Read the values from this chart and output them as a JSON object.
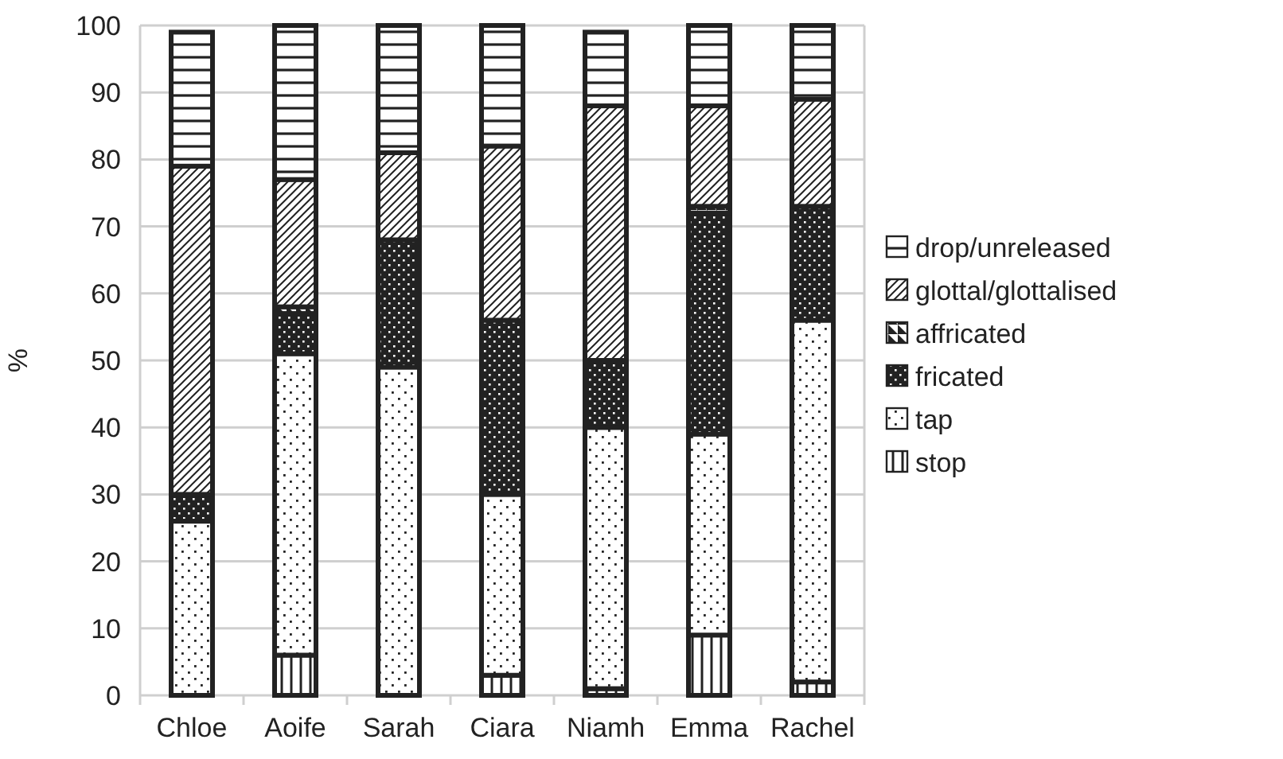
{
  "chart_data": {
    "type": "bar",
    "stacked": true,
    "ylabel": "%",
    "categories": [
      "Chloe",
      "Aoife",
      "Sarah",
      "Ciara",
      "Niamh",
      "Emma",
      "Rachel"
    ],
    "series": [
      {
        "name": "stop",
        "color": "#222222",
        "values": [
          0,
          6,
          0,
          3,
          1,
          9,
          2
        ]
      },
      {
        "name": "tap",
        "color": "#222222",
        "values": [
          26,
          45,
          49,
          27,
          39,
          30,
          54
        ]
      },
      {
        "name": "fricated",
        "color": "#222222",
        "values": [
          4,
          6,
          19,
          26,
          10,
          33,
          17
        ]
      },
      {
        "name": "affricated",
        "color": "#222222",
        "values": [
          0,
          1,
          0,
          0,
          0,
          1,
          0
        ]
      },
      {
        "name": "glottal/glottalised",
        "color": "#222222",
        "values": [
          49,
          19,
          13,
          26,
          38,
          15,
          16
        ]
      },
      {
        "name": "drop/unreleased",
        "color": "#222222",
        "values": [
          20,
          23,
          19,
          18,
          11,
          12,
          11
        ]
      }
    ],
    "ylim": [
      0,
      100
    ],
    "yticks": [
      0,
      10,
      20,
      30,
      40,
      50,
      60,
      70,
      80,
      90,
      100
    ],
    "grid": "y",
    "legend": "right"
  }
}
